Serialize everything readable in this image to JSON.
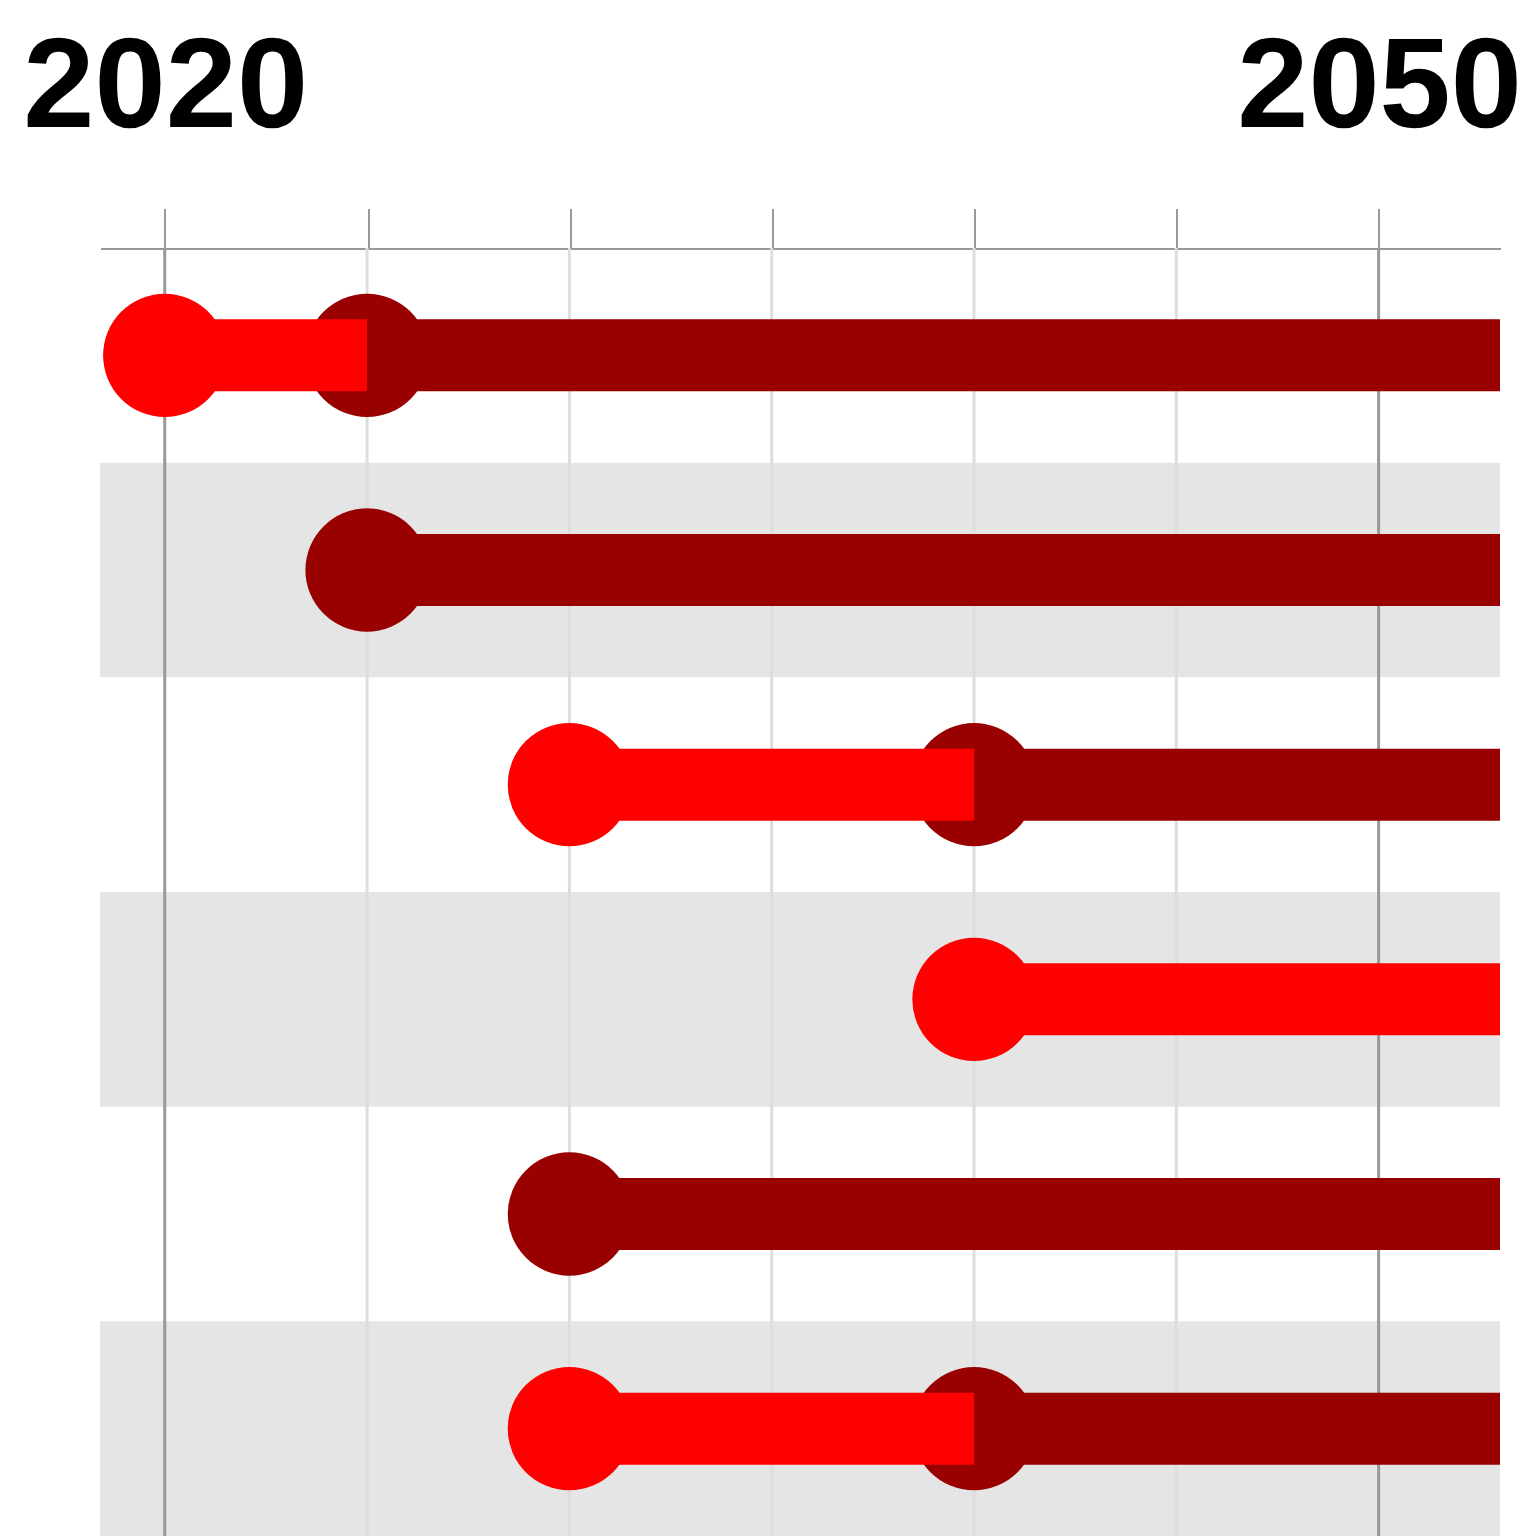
{
  "chart_data": {
    "type": "bar",
    "orientation": "horizontal",
    "marker": "circle",
    "grid": "x",
    "tick_labels": "x",
    "categories": [
      null,
      null,
      null,
      null,
      null,
      null
    ],
    "series": [
      {
        "color": "#ff0000",
        "base": [
          2020,
          null,
          2030,
          2040,
          null,
          2030
        ],
        "values": [
          5,
          null,
          10,
          13,
          null,
          10
        ]
      },
      {
        "color": "#990000",
        "base": [
          2025,
          2025,
          2040,
          null,
          2030,
          2040
        ],
        "values": [
          28,
          28,
          13,
          null,
          23,
          13
        ]
      }
    ],
    "xlim": [
      2018.4,
      2053
    ],
    "xticks": [
      2020,
      {
        "value": 2025,
        "label": null
      },
      {
        "value": 2030,
        "label": null
      },
      {
        "value": 2035,
        "label": null
      },
      {
        "value": 2040,
        "label": null
      },
      {
        "value": 2045,
        "label": null
      },
      2050
    ]
  }
}
